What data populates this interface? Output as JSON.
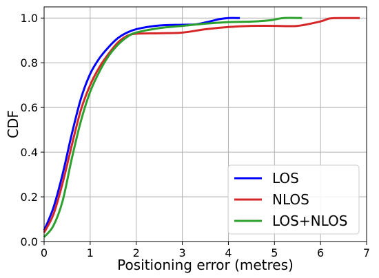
{
  "chart_data": {
    "type": "line",
    "title": "",
    "xlabel": "Positioning error (metres)",
    "ylabel": "CDF",
    "xlim": [
      0,
      7
    ],
    "ylim": [
      0,
      1.05
    ],
    "xticks": [
      "0",
      "1",
      "2",
      "3",
      "4",
      "5",
      "6",
      "7"
    ],
    "yticks": [
      "0.0",
      "0.2",
      "0.4",
      "0.6",
      "0.8",
      "1.0"
    ],
    "grid": true,
    "legend_position": "lower-right",
    "series": [
      {
        "name": "LOS",
        "color": "#0000ff",
        "x": [
          0,
          0.2,
          0.4,
          0.6,
          0.8,
          1.0,
          1.2,
          1.4,
          1.6,
          1.8,
          2.0,
          2.3,
          2.6,
          3.0,
          3.3,
          3.6,
          3.8,
          4.0,
          4.25
        ],
        "y": [
          0.05,
          0.15,
          0.3,
          0.48,
          0.64,
          0.75,
          0.82,
          0.87,
          0.91,
          0.935,
          0.95,
          0.962,
          0.968,
          0.97,
          0.972,
          0.985,
          0.995,
          1.0,
          1.0
        ]
      },
      {
        "name": "NLOS",
        "color": "#d62728",
        "x": [
          0,
          0.2,
          0.4,
          0.6,
          0.8,
          1.0,
          1.2,
          1.4,
          1.6,
          1.8,
          2.0,
          2.5,
          3.0,
          3.5,
          4.0,
          4.5,
          5.0,
          5.5,
          6.0,
          6.2,
          6.5,
          6.85
        ],
        "y": [
          0.04,
          0.12,
          0.26,
          0.43,
          0.59,
          0.7,
          0.78,
          0.84,
          0.89,
          0.92,
          0.93,
          0.932,
          0.935,
          0.95,
          0.96,
          0.965,
          0.965,
          0.965,
          0.985,
          0.998,
          1.0,
          1.0
        ]
      },
      {
        "name": "LOS+NLOS",
        "color": "#2ca02c",
        "x": [
          0,
          0.2,
          0.4,
          0.6,
          0.8,
          1.0,
          1.2,
          1.4,
          1.6,
          1.8,
          2.0,
          2.5,
          3.0,
          3.5,
          4.0,
          4.5,
          4.9,
          5.2,
          5.6
        ],
        "y": [
          0.02,
          0.07,
          0.18,
          0.37,
          0.54,
          0.67,
          0.76,
          0.83,
          0.88,
          0.915,
          0.935,
          0.955,
          0.965,
          0.975,
          0.982,
          0.984,
          0.99,
          1.0,
          1.0
        ]
      }
    ]
  }
}
